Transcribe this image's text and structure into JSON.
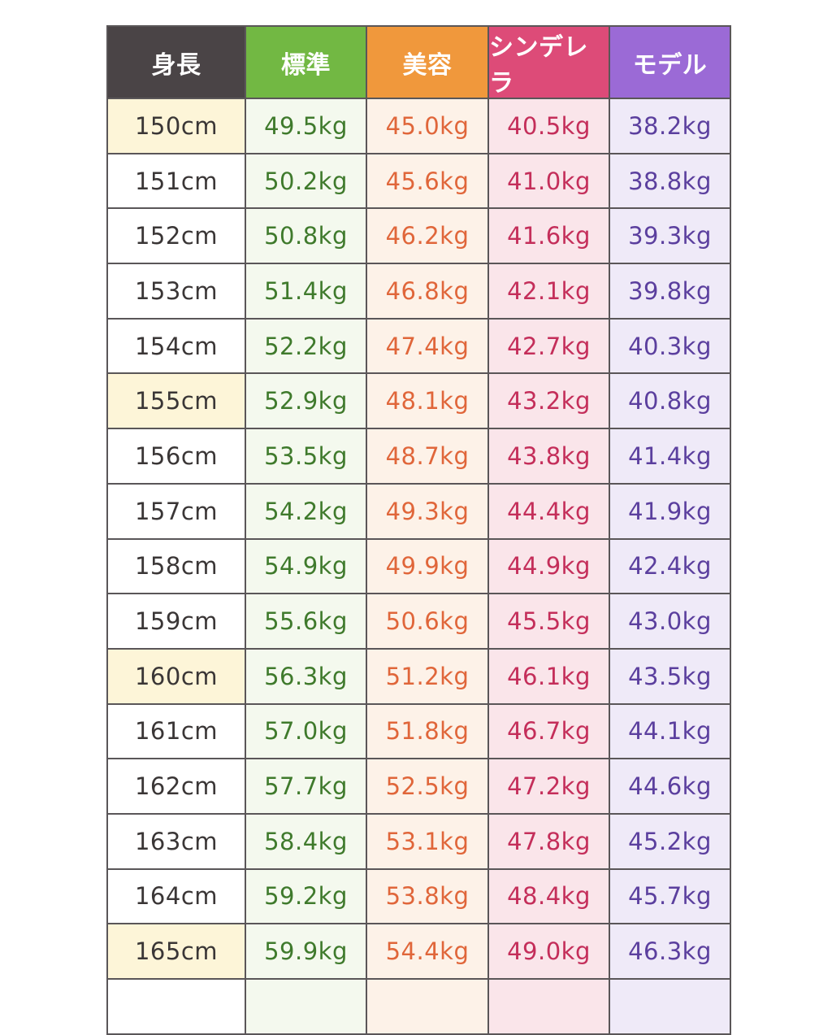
{
  "headers": [
    {
      "label": "身長",
      "color": "#4a4446"
    },
    {
      "label": "標準",
      "color": "#72b843"
    },
    {
      "label": "美容",
      "color": "#f0983c"
    },
    {
      "label": "シンデレラ",
      "color": "#dd4b78"
    },
    {
      "label": "モデル",
      "color": "#9b6ad6"
    }
  ],
  "highlight_color": "#fdf5d8",
  "rows": [
    {
      "height": "150cm",
      "values": [
        "49.5kg",
        "45.0kg",
        "40.5kg",
        "38.2kg"
      ],
      "highlighted": true
    },
    {
      "height": "151cm",
      "values": [
        "50.2kg",
        "45.6kg",
        "41.0kg",
        "38.8kg"
      ],
      "highlighted": false
    },
    {
      "height": "152cm",
      "values": [
        "50.8kg",
        "46.2kg",
        "41.6kg",
        "39.3kg"
      ],
      "highlighted": false
    },
    {
      "height": "153cm",
      "values": [
        "51.4kg",
        "46.8kg",
        "42.1kg",
        "39.8kg"
      ],
      "highlighted": false
    },
    {
      "height": "154cm",
      "values": [
        "52.2kg",
        "47.4kg",
        "42.7kg",
        "40.3kg"
      ],
      "highlighted": false
    },
    {
      "height": "155cm",
      "values": [
        "52.9kg",
        "48.1kg",
        "43.2kg",
        "40.8kg"
      ],
      "highlighted": true
    },
    {
      "height": "156cm",
      "values": [
        "53.5kg",
        "48.7kg",
        "43.8kg",
        "41.4kg"
      ],
      "highlighted": false
    },
    {
      "height": "157cm",
      "values": [
        "54.2kg",
        "49.3kg",
        "44.4kg",
        "41.9kg"
      ],
      "highlighted": false
    },
    {
      "height": "158cm",
      "values": [
        "54.9kg",
        "49.9kg",
        "44.9kg",
        "42.4kg"
      ],
      "highlighted": false
    },
    {
      "height": "159cm",
      "values": [
        "55.6kg",
        "50.6kg",
        "45.5kg",
        "43.0kg"
      ],
      "highlighted": false
    },
    {
      "height": "160cm",
      "values": [
        "56.3kg",
        "51.2kg",
        "46.1kg",
        "43.5kg"
      ],
      "highlighted": true
    },
    {
      "height": "161cm",
      "values": [
        "57.0kg",
        "51.8kg",
        "46.7kg",
        "44.1kg"
      ],
      "highlighted": false
    },
    {
      "height": "162cm",
      "values": [
        "57.7kg",
        "52.5kg",
        "47.2kg",
        "44.6kg"
      ],
      "highlighted": false
    },
    {
      "height": "163cm",
      "values": [
        "58.4kg",
        "53.1kg",
        "47.8kg",
        "45.2kg"
      ],
      "highlighted": false
    },
    {
      "height": "164cm",
      "values": [
        "59.2kg",
        "53.8kg",
        "48.4kg",
        "45.7kg"
      ],
      "highlighted": false
    },
    {
      "height": "165cm",
      "values": [
        "59.9kg",
        "54.4kg",
        "49.0kg",
        "46.3kg"
      ],
      "highlighted": true
    }
  ]
}
